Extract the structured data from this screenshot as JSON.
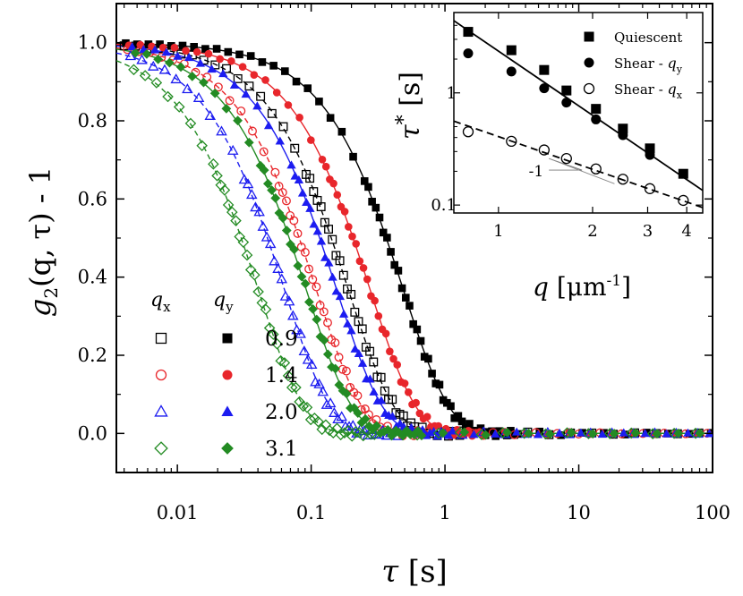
{
  "chart_data": [
    {
      "type": "scatter",
      "xlabel_symbol": "τ",
      "xlabel_unit": "[s]",
      "ylabel_parts": [
        "g",
        "2",
        "(q, τ) - 1"
      ],
      "xscale": "log",
      "xlim": [
        0.0035,
        100
      ],
      "ylim": [
        -0.1,
        1.1
      ],
      "xticks": [
        0.01,
        0.1,
        1,
        10,
        100
      ],
      "xtick_labels": [
        "0.01",
        "0.1",
        "1",
        "10",
        "100"
      ],
      "yticks": [
        0.0,
        0.2,
        0.4,
        0.6,
        0.8,
        1.0
      ],
      "ytick_labels": [
        "0.0",
        "0.2",
        "0.4",
        "0.6",
        "0.8",
        "1.0"
      ],
      "legend_header_x": "q",
      "legend_header_x_sub": "x",
      "legend_header_y": "q",
      "legend_header_y_sub": "y",
      "legend_placement": "bottom-left",
      "series": [
        {
          "q": "0.9",
          "component": "qx",
          "marker": "square-open",
          "color": "#000000",
          "tau_s": 0.33,
          "beta": 1.25,
          "fit": "dashed"
        },
        {
          "q": "0.9",
          "component": "qy",
          "marker": "square-filled",
          "color": "#000000",
          "tau_s": 0.85,
          "beta": 1.25,
          "fit": "solid"
        },
        {
          "q": "1.4",
          "component": "qx",
          "marker": "circle-open",
          "color": "#e8262b",
          "tau_s": 0.19,
          "beta": 1.25,
          "fit": "dashed"
        },
        {
          "q": "1.4",
          "component": "qy",
          "marker": "circle-filled",
          "color": "#e8262b",
          "tau_s": 0.48,
          "beta": 1.25,
          "fit": "solid"
        },
        {
          "q": "2.0",
          "component": "qx",
          "marker": "triangle-open",
          "color": "#1c1cf0",
          "tau_s": 0.11,
          "beta": 1.25,
          "fit": "dashed"
        },
        {
          "q": "2.0",
          "component": "qy",
          "marker": "triangle-filled",
          "color": "#1c1cf0",
          "tau_s": 0.27,
          "beta": 1.25,
          "fit": "solid"
        },
        {
          "q": "3.1",
          "component": "qx",
          "marker": "diamond-open",
          "color": "#238b23",
          "tau_s": 0.07,
          "beta": 1.25,
          "fit": "dashed"
        },
        {
          "q": "3.1",
          "component": "qy",
          "marker": "diamond-filled",
          "color": "#238b23",
          "tau_s": 0.16,
          "beta": 1.25,
          "fit": "solid"
        }
      ]
    },
    {
      "type": "scatter",
      "inset": true,
      "xscale": "log",
      "yscale": "log",
      "xlabel_symbol": "q",
      "xlabel_unit": "[μm",
      "xlabel_exp": "-1",
      "xlabel_close": "]",
      "ylabel_symbol": "τ",
      "ylabel_star": "*",
      "ylabel_unit": "[s]",
      "xlim": [
        0.72,
        4.5
      ],
      "ylim": [
        0.085,
        5.2
      ],
      "xticks": [
        1,
        2,
        3,
        4
      ],
      "xtick_labels": [
        "1",
        "2",
        "3",
        "4"
      ],
      "yticks": [
        0.1,
        1
      ],
      "ytick_labels": [
        "0.1",
        "1"
      ],
      "slope_label": "-1",
      "series": [
        {
          "name": "Quiescent",
          "marker": "square-filled",
          "x": [
            0.8,
            1.1,
            1.4,
            1.65,
            2.05,
            2.5,
            3.05,
            3.9
          ],
          "y": [
            3.5,
            2.4,
            1.6,
            1.05,
            0.72,
            0.48,
            0.32,
            0.19
          ]
        },
        {
          "name": "Shear - ",
          "name_sym": "q",
          "name_sub": "y",
          "marker": "circle-filled",
          "x": [
            0.8,
            1.1,
            1.4,
            1.65,
            2.05,
            2.5,
            3.05
          ],
          "y": [
            2.25,
            1.55,
            1.1,
            0.82,
            0.58,
            0.42,
            0.28
          ]
        },
        {
          "name": "Shear - ",
          "name_sym": "q",
          "name_sub": "x",
          "marker": "circle-open",
          "x": [
            0.8,
            1.1,
            1.4,
            1.65,
            2.05,
            2.5,
            3.05,
            3.9
          ],
          "y": [
            0.45,
            0.37,
            0.31,
            0.26,
            0.21,
            0.17,
            0.14,
            0.11
          ]
        }
      ],
      "fits": [
        {
          "style": "solid",
          "x": [
            0.72,
            4.5
          ],
          "y": [
            4.4,
            0.135
          ]
        },
        {
          "style": "dashed",
          "x": [
            0.72,
            4.5
          ],
          "y": [
            0.56,
            0.095
          ]
        }
      ]
    }
  ]
}
